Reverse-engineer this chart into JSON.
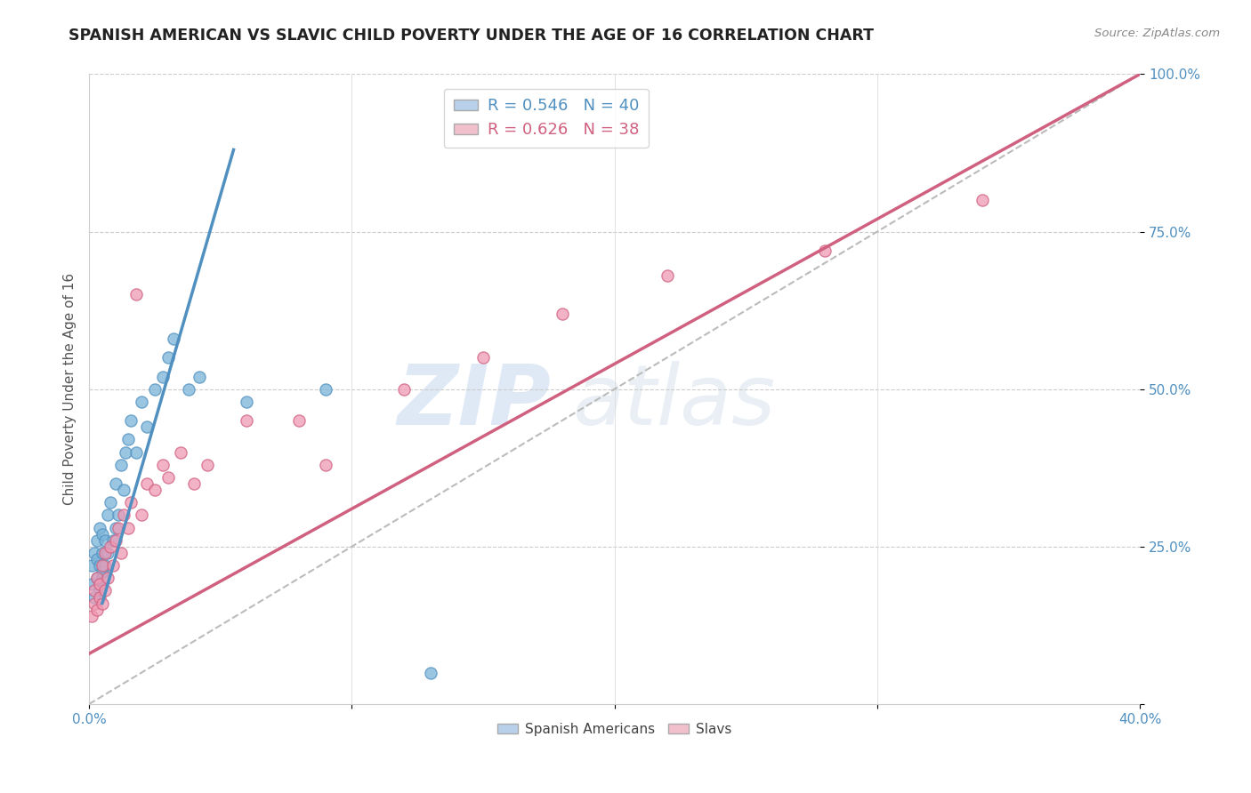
{
  "title": "SPANISH AMERICAN VS SLAVIC CHILD POVERTY UNDER THE AGE OF 16 CORRELATION CHART",
  "source": "Source: ZipAtlas.com",
  "ylabel": "Child Poverty Under the Age of 16",
  "xlim": [
    0.0,
    0.4
  ],
  "ylim": [
    0.0,
    1.0
  ],
  "legend_blue_label": "R = 0.546   N = 40",
  "legend_pink_label": "R = 0.626   N = 38",
  "legend_blue_color": "#b8d0ea",
  "legend_pink_color": "#f2bfcc",
  "watermark_zip": "ZIP",
  "watermark_atlas": "atlas",
  "blue_scatter_color": "#7ab4d8",
  "blue_scatter_edge": "#5090c0",
  "pink_scatter_color": "#f09ab5",
  "pink_scatter_edge": "#d06080",
  "blue_line_color": "#5090c0",
  "pink_line_color": "#d06080",
  "ref_line_color": "#bbbbbb",
  "background_color": "#ffffff",
  "title_fontsize": 12.5,
  "axis_label_fontsize": 11,
  "tick_fontsize": 11,
  "blue_line_x0": 0.005,
  "blue_line_y0": 0.16,
  "blue_line_x1": 0.055,
  "blue_line_y1": 0.88,
  "pink_line_x0": 0.0,
  "pink_line_y0": 0.08,
  "pink_line_x1": 0.4,
  "pink_line_y1": 1.0,
  "ref_line_x0": 0.0,
  "ref_line_y0": 0.0,
  "ref_line_x1": 0.4,
  "ref_line_y1": 1.0,
  "blue_points_x": [
    0.001,
    0.001,
    0.002,
    0.002,
    0.003,
    0.003,
    0.003,
    0.004,
    0.004,
    0.004,
    0.005,
    0.005,
    0.005,
    0.005,
    0.006,
    0.006,
    0.007,
    0.007,
    0.008,
    0.009,
    0.01,
    0.01,
    0.011,
    0.012,
    0.013,
    0.014,
    0.015,
    0.016,
    0.018,
    0.02,
    0.022,
    0.025,
    0.028,
    0.03,
    0.032,
    0.038,
    0.042,
    0.06,
    0.09,
    0.13
  ],
  "blue_points_y": [
    0.19,
    0.22,
    0.17,
    0.24,
    0.2,
    0.23,
    0.26,
    0.18,
    0.22,
    0.28,
    0.2,
    0.24,
    0.27,
    0.21,
    0.22,
    0.26,
    0.24,
    0.3,
    0.32,
    0.26,
    0.28,
    0.35,
    0.3,
    0.38,
    0.34,
    0.4,
    0.42,
    0.45,
    0.4,
    0.48,
    0.44,
    0.5,
    0.52,
    0.55,
    0.58,
    0.5,
    0.52,
    0.48,
    0.5,
    0.05
  ],
  "pink_points_x": [
    0.001,
    0.002,
    0.002,
    0.003,
    0.003,
    0.004,
    0.004,
    0.005,
    0.005,
    0.006,
    0.006,
    0.007,
    0.008,
    0.009,
    0.01,
    0.011,
    0.012,
    0.013,
    0.015,
    0.016,
    0.018,
    0.02,
    0.022,
    0.025,
    0.028,
    0.03,
    0.035,
    0.04,
    0.045,
    0.06,
    0.08,
    0.09,
    0.12,
    0.15,
    0.18,
    0.22,
    0.28,
    0.34
  ],
  "pink_points_y": [
    0.14,
    0.16,
    0.18,
    0.15,
    0.2,
    0.17,
    0.19,
    0.16,
    0.22,
    0.18,
    0.24,
    0.2,
    0.25,
    0.22,
    0.26,
    0.28,
    0.24,
    0.3,
    0.28,
    0.32,
    0.65,
    0.3,
    0.35,
    0.34,
    0.38,
    0.36,
    0.4,
    0.35,
    0.38,
    0.45,
    0.45,
    0.38,
    0.5,
    0.55,
    0.62,
    0.68,
    0.72,
    0.8
  ]
}
